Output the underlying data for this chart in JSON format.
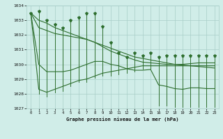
{
  "title": "Graphe pression niveau de la mer (hPa)",
  "hours": [
    0,
    1,
    2,
    3,
    4,
    5,
    6,
    7,
    8,
    9,
    10,
    11,
    12,
    13,
    14,
    15,
    16,
    17,
    18,
    19,
    20,
    21,
    22,
    23
  ],
  "max_vals": [
    1033.5,
    1033.6,
    1033.0,
    1032.7,
    1032.5,
    1033.0,
    1033.2,
    1033.5,
    1033.5,
    1032.6,
    1031.5,
    1030.8,
    1030.5,
    1030.8,
    1030.6,
    1030.8,
    1030.5,
    1030.6,
    1030.6,
    1030.6,
    1030.6,
    1030.6,
    1030.6,
    1030.6
  ],
  "min_vals": [
    1033.5,
    1028.0,
    1027.8,
    1028.1,
    1028.2,
    1028.5,
    1028.8,
    1028.8,
    1029.1,
    1029.2,
    1029.2,
    1029.3,
    1029.4,
    1029.5,
    1029.7,
    1029.7,
    1027.2,
    1027.2,
    1027.1,
    1027.1,
    1027.1,
    1027.1,
    1027.1,
    1027.1
  ],
  "high_trend": [
    1033.5,
    1033.0,
    1032.8,
    1032.5,
    1032.3,
    1032.1,
    1031.9,
    1031.7,
    1031.5,
    1031.3,
    1031.1,
    1030.9,
    1030.7,
    1030.5,
    1030.4,
    1030.3,
    1030.2,
    1030.1,
    1030.0,
    1029.95,
    1029.9,
    1029.85,
    1029.8,
    1029.75
  ],
  "low_trend": [
    1033.5,
    1028.3,
    1028.1,
    1028.3,
    1028.5,
    1028.7,
    1028.9,
    1029.0,
    1029.2,
    1029.4,
    1029.5,
    1029.6,
    1029.7,
    1029.8,
    1029.9,
    1029.9,
    1029.9,
    1029.9,
    1029.9,
    1029.9,
    1029.9,
    1029.9,
    1029.9,
    1029.9
  ],
  "mean_high_trend": [
    1033.5,
    1032.5,
    1032.3,
    1032.1,
    1032.0,
    1031.9,
    1031.8,
    1031.7,
    1031.5,
    1031.2,
    1030.9,
    1030.7,
    1030.5,
    1030.3,
    1030.15,
    1030.1,
    1030.05,
    1030.0,
    1030.0,
    1030.0,
    1030.05,
    1030.1,
    1030.1,
    1030.1
  ],
  "mean_low_trend": [
    1033.5,
    1030.0,
    1029.5,
    1029.5,
    1029.5,
    1029.6,
    1029.8,
    1030.0,
    1030.2,
    1030.2,
    1030.0,
    1029.9,
    1029.7,
    1029.6,
    1029.6,
    1029.65,
    1028.6,
    1028.5,
    1028.35,
    1028.3,
    1028.4,
    1028.4,
    1028.35,
    1028.35
  ],
  "bg_color": "#d0ede8",
  "line_color": "#2d6e2d",
  "grid_color": "#a8cec8",
  "ylim": [
    1027,
    1034
  ],
  "yticks": [
    1027,
    1028,
    1029,
    1030,
    1031,
    1032,
    1033,
    1034
  ],
  "fig_width": 3.2,
  "fig_height": 2.0,
  "dpi": 100
}
